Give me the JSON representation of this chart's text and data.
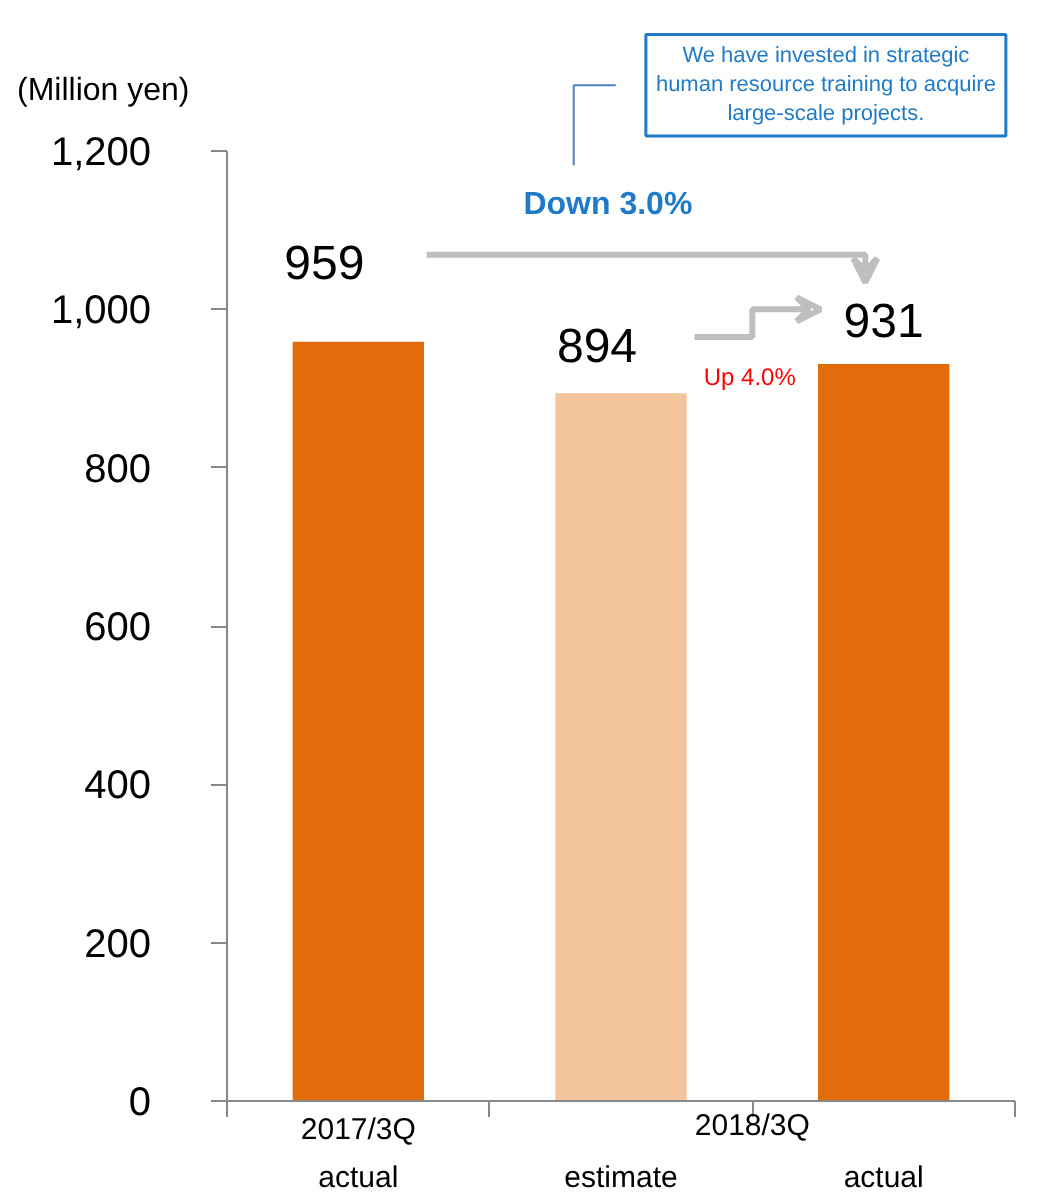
{
  "chart_data": {
    "type": "bar",
    "ylabel": "(Million yen)",
    "categories": [
      "2017/3Q\nactual",
      "estimate",
      "actual"
    ],
    "values": [
      959,
      894,
      931
    ],
    "colors": [
      "#e36c0a",
      "#f4c49c",
      "#e36c0a"
    ],
    "data_labels": true,
    "ylim": [
      0,
      1200
    ],
    "yticks": [
      0,
      {
        "value": 200,
        "label": "200"
      },
      {
        "value": 400,
        "label": "400"
      },
      {
        "value": 600,
        "label": "600"
      },
      {
        "value": 800,
        "label": "800"
      },
      {
        "value": 1000,
        "label": "1,000"
      },
      {
        "value": 1200,
        "label": "1,200"
      }
    ],
    "grid": false,
    "annotations": [
      "2018/3Q",
      "Down 3.0%",
      "Up 4.0%",
      "We have invested in strategic human resource training to acquire large-scale projects."
    ]
  }
}
